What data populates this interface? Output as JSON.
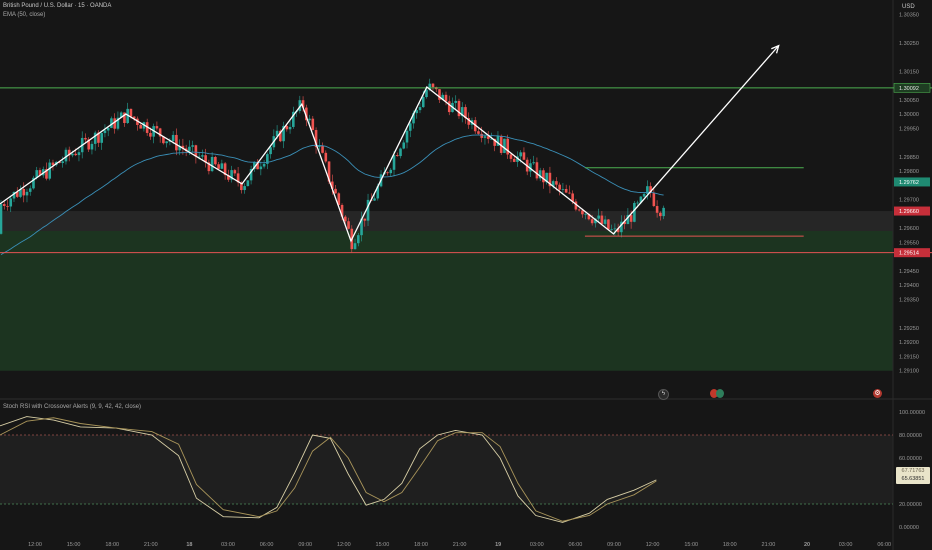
{
  "header": {
    "title": "British Pound / U.S. Dollar · 15 · OANDA",
    "indicator": "EMA (50, close)",
    "currency": "USD"
  },
  "oscillator": {
    "title": "Stoch RSI with Crossover Alerts (9, 9, 42, 42, close)",
    "ticks": [
      "100.00000",
      "80.00000",
      "60.00000",
      "20.00000",
      "0.00000"
    ],
    "badge_k": "67.71763",
    "badge_d": "65.63851",
    "upper_level": 80,
    "lower_level": 20
  },
  "colors": {
    "background": "#161616",
    "zone_green": "#1d3a22",
    "line_green": "#4caf50",
    "line_red": "#e35352",
    "candle_up": "#26a69a",
    "candle_down": "#ef5350",
    "ema": "#3a8fb7",
    "drawing": "#ffffff"
  },
  "icons": [
    "lightning-icon",
    "flags-icon",
    "gear-icon"
  ],
  "chart_data": {
    "type": "candlestick",
    "ylim": [
      1.2905,
      1.304
    ],
    "y_ticks": [
      "1.30350",
      "1.30250",
      "1.30150",
      "1.30050",
      "1.30000",
      "1.29950",
      "1.29850",
      "1.29800",
      "1.29700",
      "1.29600",
      "1.29550",
      "1.29450",
      "1.29400",
      "1.29350",
      "1.29250",
      "1.29200",
      "1.29150",
      "1.29100"
    ],
    "x_ticks": [
      "12:00",
      "15:00",
      "18:00",
      "21:00",
      "18",
      "03:00",
      "06:00",
      "09:00",
      "12:00",
      "15:00",
      "18:00",
      "21:00",
      "19",
      "03:00",
      "06:00",
      "09:00",
      "12:00",
      "15:00",
      "18:00",
      "21:00",
      "20",
      "03:00",
      "06:00"
    ],
    "price_labels": [
      {
        "value": 1.30092,
        "label": "1.30092",
        "kind": "green"
      },
      {
        "value": 1.29762,
        "label": "1.29762",
        "kind": "teal"
      },
      {
        "value": 1.2966,
        "label": "1.29660",
        "kind": "red"
      },
      {
        "value": 1.29514,
        "label": "1.29514",
        "kind": "red"
      }
    ],
    "horizontal_lines": [
      {
        "value": 1.30092,
        "kind": "green",
        "from": 0,
        "to": "end"
      },
      {
        "value": 1.29514,
        "kind": "red",
        "from": 0,
        "to": "end"
      },
      {
        "value": 1.29812,
        "kind": "green",
        "from": 0.655,
        "to": 0.9
      },
      {
        "value": 1.29572,
        "kind": "red",
        "from": 0.655,
        "to": 0.9
      }
    ],
    "zone": {
      "from": 1.2959,
      "to": 1.291
    },
    "zigzag": [
      {
        "t": 0.0,
        "p": 1.29685
      },
      {
        "t": 0.141,
        "p": 1.3
      },
      {
        "t": 0.271,
        "p": 1.29755
      },
      {
        "t": 0.338,
        "p": 1.30035
      },
      {
        "t": 0.393,
        "p": 1.29555
      },
      {
        "t": 0.478,
        "p": 1.30095
      },
      {
        "t": 0.687,
        "p": 1.2958
      },
      {
        "t": 0.872,
        "p": 1.3024
      }
    ],
    "stoch_k": [
      [
        0,
        88
      ],
      [
        0.03,
        96
      ],
      [
        0.06,
        93
      ],
      [
        0.09,
        87
      ],
      [
        0.13,
        86
      ],
      [
        0.17,
        80
      ],
      [
        0.2,
        62
      ],
      [
        0.22,
        25
      ],
      [
        0.25,
        9
      ],
      [
        0.29,
        8
      ],
      [
        0.31,
        17
      ],
      [
        0.33,
        47
      ],
      [
        0.35,
        80
      ],
      [
        0.37,
        77
      ],
      [
        0.39,
        46
      ],
      [
        0.41,
        19
      ],
      [
        0.43,
        24
      ],
      [
        0.45,
        38
      ],
      [
        0.47,
        68
      ],
      [
        0.49,
        80
      ],
      [
        0.51,
        84
      ],
      [
        0.54,
        80
      ],
      [
        0.56,
        60
      ],
      [
        0.58,
        27
      ],
      [
        0.6,
        10
      ],
      [
        0.63,
        4
      ],
      [
        0.66,
        12
      ],
      [
        0.68,
        24
      ],
      [
        0.71,
        32
      ],
      [
        0.735,
        41
      ]
    ],
    "stoch_d": [
      [
        0,
        80
      ],
      [
        0.03,
        92
      ],
      [
        0.06,
        95
      ],
      [
        0.09,
        90
      ],
      [
        0.13,
        86
      ],
      [
        0.17,
        83
      ],
      [
        0.2,
        72
      ],
      [
        0.22,
        37
      ],
      [
        0.25,
        15
      ],
      [
        0.29,
        9
      ],
      [
        0.31,
        14
      ],
      [
        0.33,
        34
      ],
      [
        0.35,
        66
      ],
      [
        0.37,
        78
      ],
      [
        0.39,
        60
      ],
      [
        0.41,
        30
      ],
      [
        0.43,
        22
      ],
      [
        0.45,
        30
      ],
      [
        0.47,
        52
      ],
      [
        0.49,
        75
      ],
      [
        0.51,
        82
      ],
      [
        0.54,
        82
      ],
      [
        0.56,
        70
      ],
      [
        0.58,
        38
      ],
      [
        0.6,
        14
      ],
      [
        0.63,
        5
      ],
      [
        0.66,
        10
      ],
      [
        0.68,
        20
      ],
      [
        0.71,
        28
      ],
      [
        0.735,
        40
      ]
    ]
  }
}
